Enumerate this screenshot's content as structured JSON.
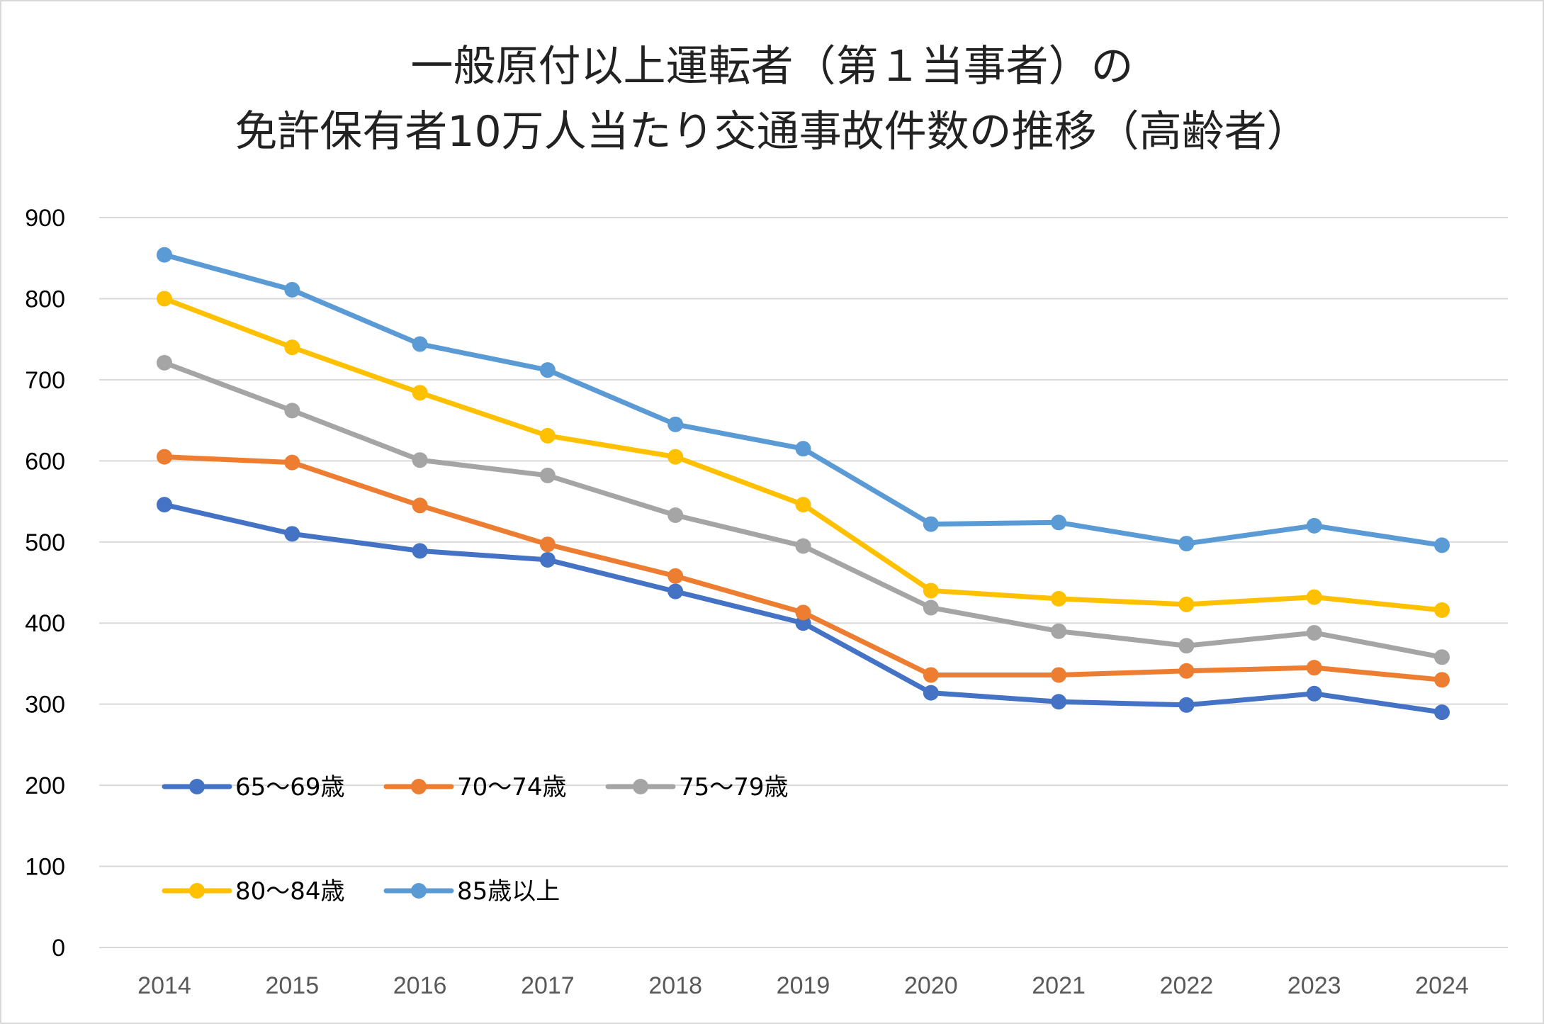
{
  "chart_data": {
    "type": "line",
    "title": [
      "一般原付以上運転者（第１当事者）の",
      "免許保有者10万人当たり交通事故件数の推移（高齢者）"
    ],
    "xlabel": "",
    "ylabel": "",
    "x": [
      "2014",
      "2015",
      "2016",
      "2017",
      "2018",
      "2019",
      "2020",
      "2021",
      "2022",
      "2023",
      "2024"
    ],
    "ylim": [
      0,
      900
    ],
    "yticks": [
      0,
      100,
      200,
      300,
      400,
      500,
      600,
      700,
      800,
      900
    ],
    "grid": true,
    "legend_position": "bottom-left",
    "series": [
      {
        "name": "65～69歳",
        "color": "#4472C4",
        "values": [
          546,
          510,
          489,
          478,
          439,
          400,
          314,
          303,
          299,
          313,
          290
        ]
      },
      {
        "name": "70～74歳",
        "color": "#ED7D31",
        "values": [
          605,
          598,
          545,
          497,
          458,
          413,
          336,
          336,
          341,
          345,
          330
        ]
      },
      {
        "name": "75～79歳",
        "color": "#A5A5A5",
        "values": [
          721,
          662,
          601,
          582,
          533,
          495,
          419,
          390,
          372,
          388,
          358
        ]
      },
      {
        "name": "80～84歳",
        "color": "#FFC000",
        "values": [
          800,
          740,
          684,
          631,
          605,
          546,
          440,
          430,
          423,
          432,
          416
        ]
      },
      {
        "name": "85歳以上",
        "color": "#5B9BD5",
        "values": [
          854,
          811,
          744,
          712,
          645,
          615,
          522,
          524,
          498,
          520,
          496
        ]
      }
    ]
  }
}
